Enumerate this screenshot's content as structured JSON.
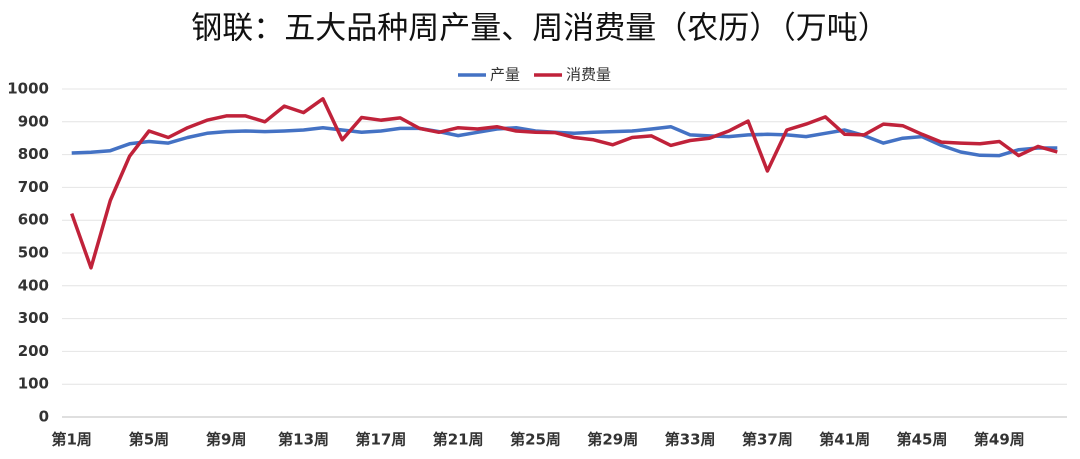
{
  "chart_data": {
    "type": "line",
    "title": "钢联：五大品种周产量、周消费量（农历）（万吨）",
    "categories": [
      "第1周",
      null,
      null,
      null,
      "第5周",
      null,
      null,
      null,
      "第9周",
      null,
      null,
      null,
      "第13周",
      null,
      null,
      null,
      "第17周",
      null,
      null,
      null,
      "第21周",
      null,
      null,
      null,
      "第25周",
      null,
      null,
      null,
      "第29周",
      null,
      null,
      null,
      "第33周",
      null,
      null,
      null,
      "第37周",
      null,
      null,
      null,
      "第41周",
      null,
      null,
      null,
      "第45周",
      null,
      null,
      null,
      "第49周",
      null,
      null,
      null
    ],
    "series": [
      {
        "name": "产量",
        "color": "#4472c4",
        "values": [
          805,
          807,
          812,
          833,
          840,
          835,
          852,
          865,
          870,
          872,
          870,
          872,
          875,
          882,
          875,
          868,
          872,
          880,
          880,
          870,
          858,
          868,
          878,
          882,
          872,
          868,
          865,
          868,
          870,
          872,
          878,
          885,
          860,
          857,
          855,
          860,
          862,
          860,
          855,
          865,
          875,
          858,
          835,
          850,
          855,
          828,
          808,
          798,
          797,
          815,
          820,
          820
        ]
      },
      {
        "name": "消费量",
        "color": "#c0223a",
        "values": [
          620,
          455,
          660,
          795,
          872,
          852,
          882,
          905,
          918,
          918,
          900,
          948,
          928,
          970,
          845,
          913,
          905,
          912,
          880,
          868,
          882,
          878,
          885,
          872,
          868,
          867,
          852,
          845,
          830,
          852,
          857,
          828,
          843,
          850,
          872,
          902,
          750,
          875,
          893,
          915,
          862,
          860,
          893,
          888,
          862,
          838,
          835,
          833,
          840,
          797,
          825,
          808
        ]
      }
    ],
    "ylim": [
      0,
      1000
    ],
    "yticks": [
      0,
      100,
      200,
      300,
      400,
      500,
      600,
      700,
      800,
      900,
      1000
    ],
    "grid": true,
    "legend": "top"
  }
}
